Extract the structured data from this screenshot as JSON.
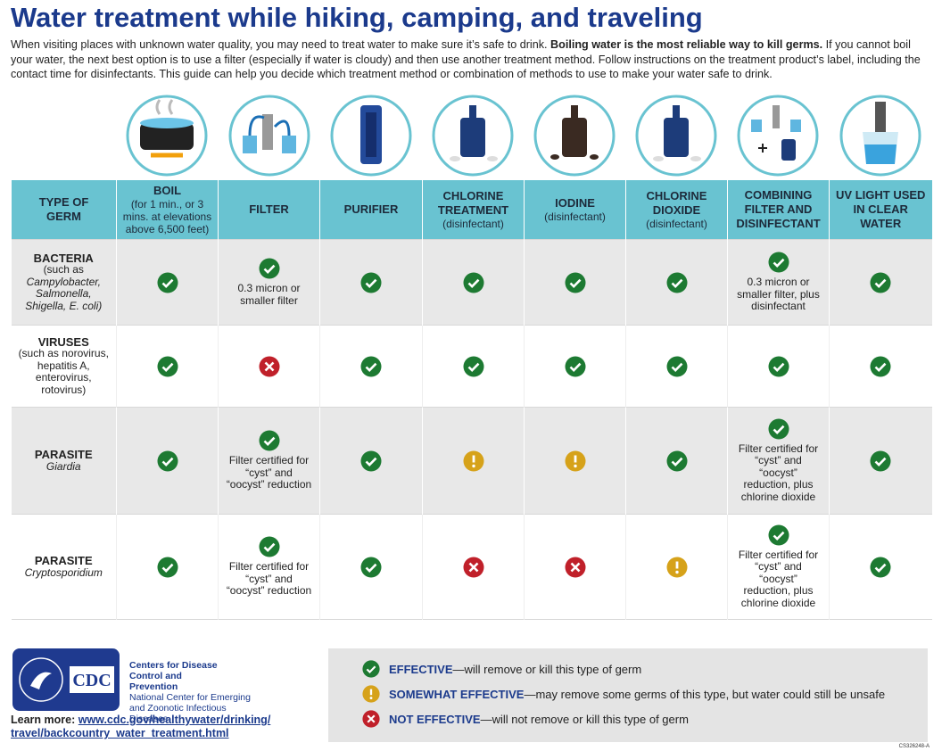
{
  "title": "Water treatment while hiking, camping, and traveling",
  "intro": [
    "When visiting places with unknown water quality, you may need to treat water to make sure it’s safe to drink.",
    "Boiling water is the most reliable way to kill germs.",
    "If you cannot boil your water, the next best option is to use a filter (especially if water is cloudy) and then use another treatment method. Follow instructions on the treatment product’s label, including the contact time for disinfectants. This guide can help you decide which treatment method or combination of methods to use to make your water safe to drink."
  ],
  "table": {
    "header": [
      {
        "title": "TYPE OF GERM"
      },
      {
        "title": "BOIL",
        "note": "(for 1 min., or 3 mins. at elevations above 6,500 feet)"
      },
      {
        "title": "FILTER"
      },
      {
        "title": "PURIFIER"
      },
      {
        "title": "CHLORINE TREATMENT",
        "note": "(disinfectant)"
      },
      {
        "title": "IODINE",
        "note": "(disinfectant)"
      },
      {
        "title": "CHLORINE DIOXIDE",
        "note": "(disinfectant)"
      },
      {
        "title": "COMBINING FILTER AND DISINFECTANT"
      },
      {
        "title": "UV LIGHT USED IN CLEAR WATER"
      }
    ],
    "rows": [
      {
        "germ": "BACTERIA",
        "detail": "(such as",
        "detail_italic": "Campylobacter, Salmonella, Shigella, E. coli)",
        "cells": [
          {
            "mark": "check"
          },
          {
            "mark": "check",
            "note": "0.3 micron or smaller filter"
          },
          {
            "mark": "check"
          },
          {
            "mark": "check"
          },
          {
            "mark": "check"
          },
          {
            "mark": "check"
          },
          {
            "mark": "check",
            "note": "0.3 micron or smaller filter, plus disinfectant"
          },
          {
            "mark": "check"
          }
        ]
      },
      {
        "germ": "VIRUSES",
        "detail": "(such as norovirus, hepatitis A, enterovirus, rotovirus)",
        "cells": [
          {
            "mark": "check"
          },
          {
            "mark": "cross"
          },
          {
            "mark": "check"
          },
          {
            "mark": "check"
          },
          {
            "mark": "check"
          },
          {
            "mark": "check"
          },
          {
            "mark": "check"
          },
          {
            "mark": "check"
          }
        ]
      },
      {
        "germ": "PARASITE",
        "detail_italic": "Giardia",
        "cells": [
          {
            "mark": "check"
          },
          {
            "mark": "check",
            "note": "Filter certified for “cyst” and “oocyst” reduction"
          },
          {
            "mark": "check"
          },
          {
            "mark": "caution"
          },
          {
            "mark": "caution"
          },
          {
            "mark": "check"
          },
          {
            "mark": "check",
            "note": "Filter certified for “cyst” and “oocyst” reduction, plus chlorine dioxide"
          },
          {
            "mark": "check"
          }
        ]
      },
      {
        "germ": "PARASITE",
        "detail_italic": "Cryptosporidium",
        "cells": [
          {
            "mark": "check"
          },
          {
            "mark": "check",
            "note": "Filter certified for “cyst” and “oocyst” reduction"
          },
          {
            "mark": "check"
          },
          {
            "mark": "cross"
          },
          {
            "mark": "cross"
          },
          {
            "mark": "caution"
          },
          {
            "mark": "check",
            "note": "Filter certified for “cyst” and “oocyst” reduction, plus chlorine dioxide"
          },
          {
            "mark": "check"
          }
        ]
      }
    ]
  },
  "footer": {
    "logo": "CDC",
    "org": "Centers for Disease Control and Prevention",
    "center": "National Center for Emerging and Zoonotic Infectious Diseases",
    "learn_more": "Learn more:",
    "link": [
      "www.cdc.gov/healthywater/drinking/",
      "travel/backcountry_water_treatment.html"
    ],
    "code": "CS326248-A"
  },
  "legend": [
    {
      "mark": "check",
      "label": "EFFECTIVE",
      "text": "—will remove or kill this type of germ"
    },
    {
      "mark": "caution",
      "label": "SOMEWHAT EFFECTIVE",
      "text": "—may remove some germs of this type, but water could still be unsafe"
    },
    {
      "mark": "cross",
      "label": "NOT EFFECTIVE",
      "text": "—will not remove or kill this type of germ"
    }
  ]
}
